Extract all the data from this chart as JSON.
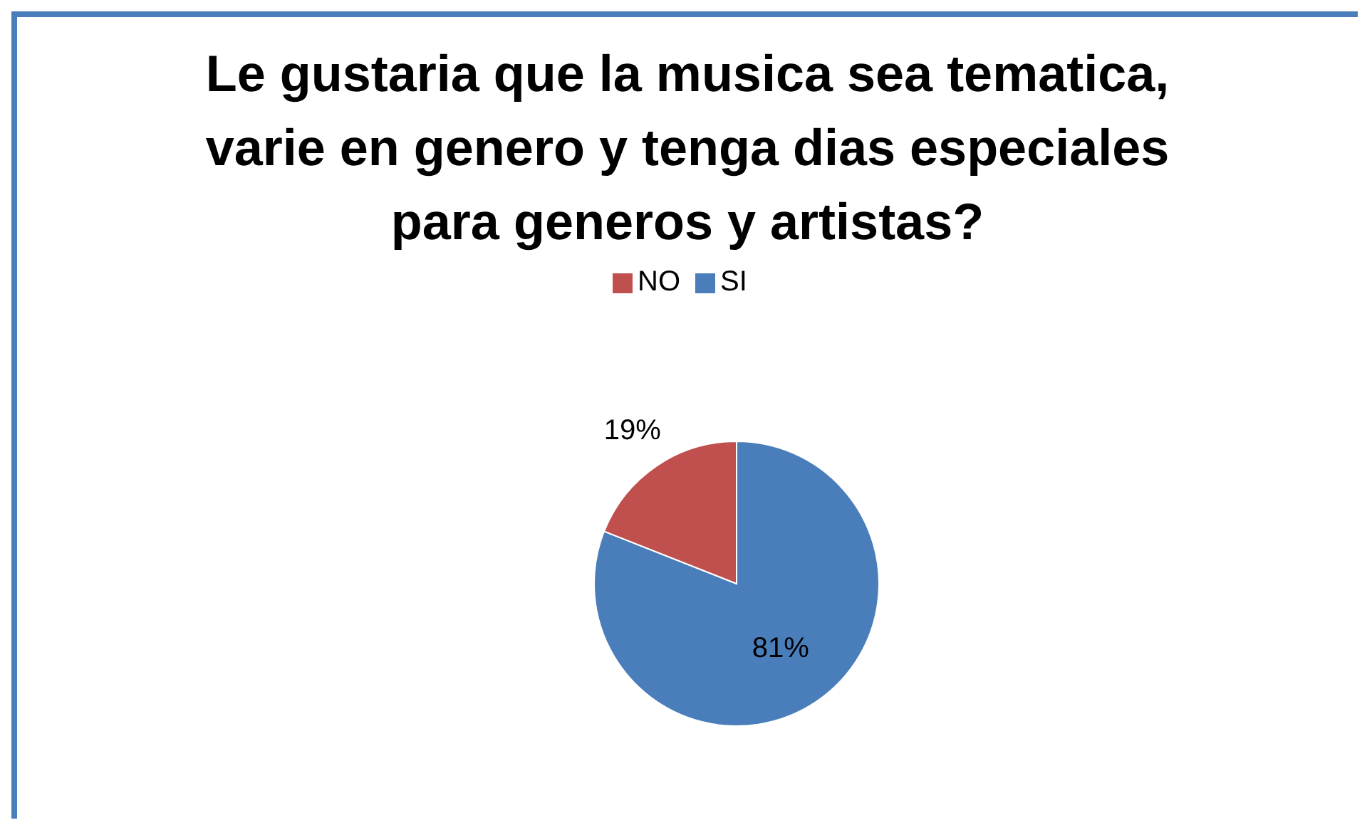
{
  "chart_data": {
    "type": "pie",
    "title": "Le gustaria que la musica sea tematica, varie en genero y tenga dias especiales para generos y artistas?",
    "categories": [
      "SI",
      "NO"
    ],
    "values": [
      81,
      19
    ],
    "colors": [
      "#4a7ebb",
      "#c0504d"
    ],
    "value_labels": [
      "81%",
      "19%"
    ],
    "legend": "top"
  }
}
